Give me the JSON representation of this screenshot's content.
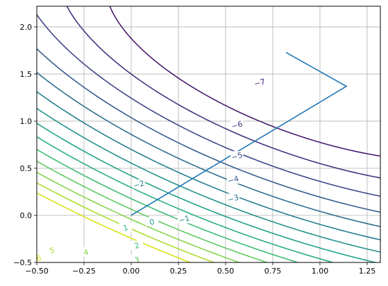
{
  "chart_data": {
    "type": "contour",
    "title": "",
    "xlabel": "",
    "ylabel": "",
    "xlim": [
      -0.5,
      1.32
    ],
    "ylim": [
      -0.5,
      2.22
    ],
    "grid": true,
    "x_ticks": [
      -0.5,
      -0.25,
      0.0,
      0.25,
      0.5,
      0.75,
      1.0,
      1.25
    ],
    "x_tick_labels": [
      "−0.50",
      "−0.25",
      "0.00",
      "0.25",
      "0.50",
      "0.75",
      "1.00",
      "1.25"
    ],
    "y_ticks": [
      -0.5,
      0.0,
      0.5,
      1.0,
      1.5,
      2.0
    ],
    "y_tick_labels": [
      "−0.5",
      "0.0",
      "0.5",
      "1.0",
      "1.5",
      "2.0"
    ],
    "colormap": "viridis",
    "levels": [
      {
        "level": -7,
        "label": "−7",
        "color": "#481b6d",
        "label_at": [
          0.68,
          1.41
        ]
      },
      {
        "level": -6,
        "label": "−6",
        "color": "#46327e",
        "label_at": [
          0.56,
          0.96
        ]
      },
      {
        "level": -5,
        "label": "−5",
        "color": "#3f4788",
        "label_at": [
          0.56,
          0.63
        ]
      },
      {
        "level": -4,
        "label": "−4",
        "color": "#365c8d",
        "label_at": [
          0.54,
          0.38
        ]
      },
      {
        "level": -3,
        "label": "−3",
        "color": "#2e6e8e",
        "label_at": [
          0.54,
          0.18
        ]
      },
      {
        "level": -2,
        "label": "−2",
        "color": "#277f8e",
        "label_at": [
          0.04,
          0.33
        ]
      },
      {
        "level": -1,
        "label": "−1",
        "color": "#21918c",
        "label_at": [
          0.28,
          -0.04
        ]
      },
      {
        "level": 0,
        "label": "0",
        "color": "#1fa188",
        "label_at": [
          0.11,
          -0.07
        ]
      },
      {
        "level": 1,
        "label": "1",
        "color": "#28ae80",
        "label_at": [
          -0.03,
          -0.13
        ]
      },
      {
        "level": 2,
        "label": "2",
        "color": "#3fbc73",
        "label_at": [
          0.03,
          -0.32
        ]
      },
      {
        "level": 3,
        "label": "3",
        "color": "#5ec962",
        "label_at": [
          0.03,
          -0.47
        ]
      },
      {
        "level": 4,
        "label": "4",
        "color": "#84d44b",
        "label_at": [
          -0.24,
          -0.39
        ]
      },
      {
        "level": 5,
        "label": "5",
        "color": "#addc30",
        "label_at": [
          -0.42,
          -0.37
        ]
      },
      {
        "level": 6,
        "label": "6",
        "color": "#d8e219",
        "label_at": [
          -0.49,
          -0.45
        ]
      }
    ],
    "path": {
      "color": "#1f77b4",
      "x": [
        0.0,
        1.14,
        0.82
      ],
      "y": [
        0.0,
        1.37,
        1.73
      ]
    }
  }
}
